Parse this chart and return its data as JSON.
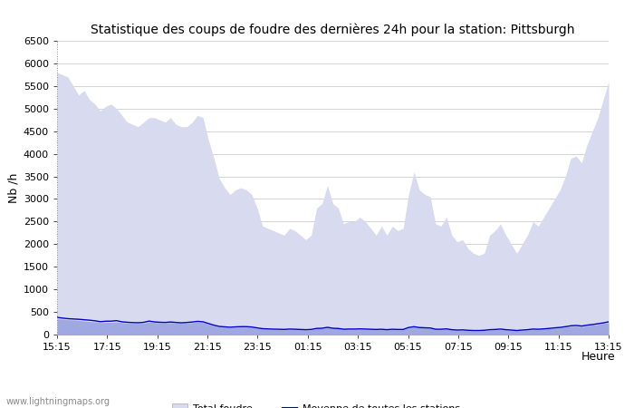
{
  "title": "Statistique des coups de foudre des dernières 24h pour la station: Pittsburgh",
  "xlabel": "Heure",
  "ylabel": "Nb /h",
  "watermark": "www.lightningmaps.org",
  "x_ticks": [
    "15:15",
    "17:15",
    "19:15",
    "21:15",
    "23:15",
    "01:15",
    "03:15",
    "05:15",
    "07:15",
    "09:15",
    "11:15",
    "13:15"
  ],
  "ylim": [
    0,
    6500
  ],
  "yticks": [
    0,
    500,
    1000,
    1500,
    2000,
    2500,
    3000,
    3500,
    4000,
    4500,
    5000,
    5500,
    6000,
    6500
  ],
  "color_total": "#d8daef",
  "color_local": "#9fa8e0",
  "color_mean": "#0000cc",
  "bg_color": "#ffffff",
  "grid_color": "#cccccc",
  "total_foudre": [
    5800,
    5750,
    5700,
    5500,
    5300,
    5400,
    5200,
    5100,
    4950,
    5050,
    5100,
    5000,
    4850,
    4700,
    4650,
    4600,
    4700,
    4800,
    4800,
    4750,
    4700,
    4800,
    4650,
    4600,
    4600,
    4700,
    4850,
    4800,
    4300,
    3900,
    3450,
    3250,
    3100,
    3200,
    3250,
    3200,
    3100,
    2800,
    2400,
    2350,
    2300,
    2250,
    2200,
    2350,
    2300,
    2200,
    2100,
    2200,
    2800,
    2900,
    3300,
    2900,
    2800,
    2450,
    2500,
    2500,
    2600,
    2500,
    2350,
    2200,
    2400,
    2200,
    2400,
    2300,
    2350,
    3100,
    3600,
    3200,
    3100,
    3050,
    2450,
    2400,
    2600,
    2200,
    2050,
    2100,
    1900,
    1800,
    1750,
    1800,
    2200,
    2300,
    2450,
    2200,
    2000,
    1800,
    2000,
    2200,
    2500,
    2400,
    2600,
    2800,
    3000,
    3200,
    3500,
    3900,
    3950,
    3800,
    4200,
    4500,
    4800,
    5200,
    5600
  ],
  "local_foudre": [
    350,
    340,
    330,
    320,
    310,
    300,
    290,
    280,
    265,
    270,
    270,
    280,
    265,
    255,
    250,
    248,
    255,
    275,
    268,
    260,
    258,
    265,
    258,
    252,
    258,
    265,
    275,
    268,
    232,
    195,
    168,
    158,
    150,
    158,
    162,
    162,
    158,
    140,
    122,
    118,
    113,
    112,
    108,
    118,
    113,
    108,
    104,
    108,
    130,
    135,
    152,
    135,
    130,
    114,
    118,
    118,
    122,
    118,
    114,
    108,
    113,
    104,
    113,
    108,
    108,
    150,
    168,
    150,
    145,
    142,
    116,
    116,
    124,
    106,
    97,
    100,
    91,
    87,
    87,
    91,
    104,
    108,
    118,
    104,
    97,
    87,
    97,
    104,
    118,
    114,
    124,
    132,
    140,
    150,
    162,
    180,
    186,
    175,
    196,
    210,
    224,
    244,
    264
  ],
  "mean_foudre": [
    380,
    365,
    352,
    345,
    338,
    328,
    318,
    305,
    285,
    295,
    297,
    308,
    282,
    272,
    265,
    262,
    270,
    298,
    280,
    272,
    268,
    278,
    268,
    260,
    268,
    278,
    292,
    282,
    245,
    208,
    180,
    170,
    162,
    170,
    175,
    175,
    167,
    148,
    130,
    125,
    120,
    118,
    114,
    122,
    118,
    113,
    108,
    114,
    136,
    140,
    160,
    140,
    135,
    118,
    122,
    122,
    126,
    122,
    118,
    113,
    118,
    108,
    118,
    113,
    113,
    156,
    174,
    156,
    150,
    146,
    118,
    118,
    126,
    108,
    100,
    104,
    95,
    90,
    90,
    95,
    108,
    113,
    122,
    108,
    100,
    90,
    100,
    108,
    122,
    118,
    126,
    136,
    148,
    158,
    174,
    194,
    202,
    188,
    208,
    222,
    240,
    258,
    282
  ],
  "n_points": 103
}
